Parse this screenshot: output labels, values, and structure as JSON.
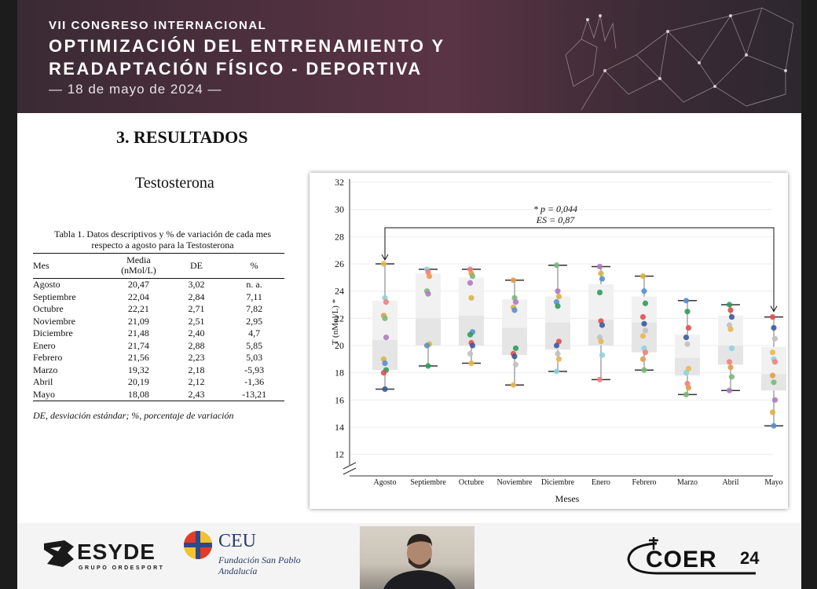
{
  "banner": {
    "line1": "VII CONGRESO INTERNACIONAL",
    "line2": "OPTIMIZACIÓN DEL ENTRENAMIENTO Y",
    "line3": "READAPTACIÓN FÍSICO - DEPORTIVA",
    "date": "— 18 de mayo de 2024 —"
  },
  "slide": {
    "heading": "3. RESULTADOS",
    "subheading": "Testosterona",
    "table": {
      "caption_line1": "Tabla 1. Datos descriptivos y % de variación de cada mes",
      "caption_line2": "respecto a agosto para la Testosterona",
      "headers": {
        "mes": "Mes",
        "media_1": "Media",
        "media_2": "(nMol/L)",
        "de": "DE",
        "pct": "%"
      },
      "rows": [
        {
          "mes": "Agosto",
          "media": "20,47",
          "de": "3,02",
          "pct": "n. a."
        },
        {
          "mes": "Septiembre",
          "media": "22,04",
          "de": "2,84",
          "pct": "7,11"
        },
        {
          "mes": "Octubre",
          "media": "22,21",
          "de": "2,71",
          "pct": "7,82"
        },
        {
          "mes": "Noviembre",
          "media": "21,09",
          "de": "2,51",
          "pct": "2,95"
        },
        {
          "mes": "Diciembre",
          "media": "21,48",
          "de": "2,40",
          "pct": "4,7"
        },
        {
          "mes": "Enero",
          "media": "21,74",
          "de": "2,88",
          "pct": "5,85"
        },
        {
          "mes": "Febrero",
          "media": "21,56",
          "de": "2,23",
          "pct": "5,03"
        },
        {
          "mes": "Marzo",
          "media": "19,32",
          "de": "2,18",
          "pct": "-5,93"
        },
        {
          "mes": "Abril",
          "media": "20,19",
          "de": "2,12",
          "pct": "-1,36"
        },
        {
          "mes": "Mayo",
          "media": "18,08",
          "de": "2,43",
          "pct": "-13,21"
        }
      ],
      "note": "DE, desviación estándar; %, porcentaje de variación"
    }
  },
  "chart_data": {
    "type": "box",
    "categories": [
      "Agosto",
      "Septiembre",
      "Octubre",
      "Noviembre",
      "Diciembre",
      "Enero",
      "Febrero",
      "Marzo",
      "Abril",
      "Mayo"
    ],
    "xlabel": "Meses",
    "ylabel": "T (nMol/L) *",
    "y_ticks": [
      "12",
      "14",
      "16",
      "18",
      "20",
      "22",
      "24",
      "26",
      "28",
      "30",
      "32"
    ],
    "ylim": [
      11,
      32
    ],
    "annotation_p": "* p = 0,044",
    "annotation_es": "ES = 0,87",
    "comparison": [
      "Agosto",
      "Mayo"
    ],
    "boxes": [
      {
        "min": 16.8,
        "q1": 18.2,
        "median": 20.4,
        "q3": 23.3,
        "max": 26.0
      },
      {
        "min": 18.5,
        "q1": 20.0,
        "median": 22.0,
        "q3": 25.3,
        "max": 25.6
      },
      {
        "min": 18.7,
        "q1": 20.0,
        "median": 22.2,
        "q3": 25.0,
        "max": 25.6
      },
      {
        "min": 17.1,
        "q1": 19.3,
        "median": 21.3,
        "q3": 23.4,
        "max": 24.8
      },
      {
        "min": 18.1,
        "q1": 19.7,
        "median": 21.7,
        "q3": 23.6,
        "max": 25.9
      },
      {
        "min": 17.5,
        "q1": 20.0,
        "median": 21.9,
        "q3": 24.5,
        "max": 25.8
      },
      {
        "min": 18.2,
        "q1": 19.5,
        "median": 21.7,
        "q3": 23.6,
        "max": 25.1
      },
      {
        "min": 16.4,
        "q1": 17.8,
        "median": 19.1,
        "q3": 20.8,
        "max": 23.3
      },
      {
        "min": 16.7,
        "q1": 18.6,
        "median": 20.0,
        "q3": 22.2,
        "max": 23.0
      },
      {
        "min": 14.1,
        "q1": 16.7,
        "median": 17.9,
        "q3": 19.9,
        "max": 22.1
      }
    ],
    "points": [
      [
        26.0,
        23.5,
        23.2,
        22.2,
        22.0,
        20.6,
        19.0,
        18.7,
        18.2,
        18.0,
        16.8
      ],
      [
        25.6,
        25.4,
        25.1,
        24.0,
        23.8,
        20.1,
        20.0,
        18.5
      ],
      [
        25.6,
        25.3,
        25.1,
        24.6,
        23.5,
        21.0,
        20.8,
        20.2,
        20.0,
        19.4,
        18.7
      ],
      [
        24.8,
        23.5,
        23.2,
        22.8,
        22.6,
        19.8,
        19.4,
        19.2,
        18.6,
        17.1
      ],
      [
        25.9,
        24.0,
        23.6,
        23.2,
        22.9,
        20.3,
        20.0,
        19.4,
        19.0,
        18.1
      ],
      [
        25.8,
        25.3,
        24.9,
        23.9,
        21.8,
        21.5,
        20.6,
        20.3,
        19.3,
        17.5
      ],
      [
        25.1,
        24.0,
        23.1,
        22.1,
        21.6,
        21.1,
        20.7,
        19.8,
        19.5,
        19.0,
        18.2
      ],
      [
        23.3,
        22.5,
        21.3,
        20.6,
        20.1,
        18.3,
        18.0,
        17.2,
        16.9,
        16.4
      ],
      [
        23.0,
        22.6,
        22.1,
        21.5,
        21.2,
        19.8,
        18.8,
        18.4,
        17.7,
        16.7
      ],
      [
        22.1,
        21.3,
        20.5,
        19.5,
        19.0,
        18.8,
        17.8,
        17.3,
        16.0,
        15.1,
        14.1
      ]
    ],
    "point_colors": [
      "#e8b84a",
      "#8fd0e0",
      "#f08080",
      "#e89a4a",
      "#7ab87a",
      "#b07ac0",
      "#d9b340",
      "#5a8fd0",
      "#2f9c5a",
      "#e05050",
      "#3a5aa0",
      "#c0c0c0"
    ]
  },
  "footer": {
    "esyde_name": "ESYDE",
    "esyde_sub": "GRUPO ORDESPORT",
    "ceu_name": "CEU",
    "ceu_sub1": "Fundación San Pablo",
    "ceu_sub2": "Andalucía",
    "coer_name": "COER",
    "coer_year": "24"
  }
}
